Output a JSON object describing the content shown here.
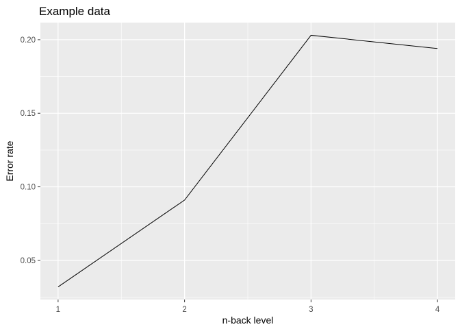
{
  "chart_data": {
    "type": "line",
    "title": "Example data",
    "xlabel": "n-back level",
    "ylabel": "Error rate",
    "x": [
      1,
      2,
      3,
      4
    ],
    "series": [
      {
        "values": [
          0.032,
          0.091,
          0.203,
          0.194
        ],
        "color": "#000000"
      }
    ],
    "xlim": [
      0.86,
      4.14
    ],
    "ylim": [
      0.0234,
      0.2116
    ],
    "xticks": [
      1,
      2,
      3,
      4
    ],
    "xtick_labels": [
      "1",
      "2",
      "3",
      "4"
    ],
    "yticks": [
      0.05,
      0.1,
      0.15,
      0.2
    ],
    "ytick_labels": [
      "0.05",
      "0.10",
      "0.15",
      "0.20"
    ],
    "grid": true,
    "panel_background": "#ebebeb",
    "grid_color": "#ffffff"
  }
}
